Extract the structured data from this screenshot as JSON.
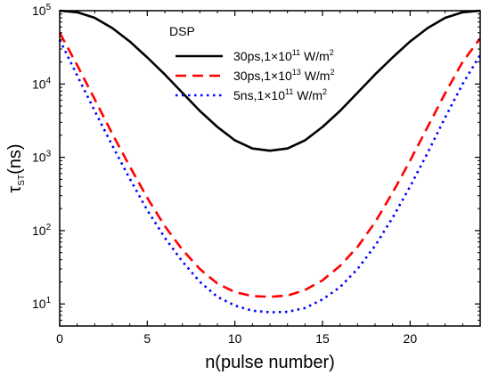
{
  "chart_data": {
    "type": "line",
    "title": "",
    "xlabel": "n(pulse number)",
    "ylabel": {
      "base": "τ",
      "sub": "ST",
      "rest": "(ns)"
    },
    "xlim": [
      0,
      24
    ],
    "ylim": [
      5,
      100000
    ],
    "y_scale": "log",
    "x_ticks": [
      0,
      5,
      10,
      15,
      20
    ],
    "y_ticks": [
      {
        "value": 10,
        "exp": "1"
      },
      {
        "value": 100,
        "exp": "2"
      },
      {
        "value": 1000,
        "exp": "3"
      },
      {
        "value": 10000,
        "exp": "4"
      },
      {
        "value": 100000,
        "exp": "5"
      }
    ],
    "grid": false,
    "legend": {
      "title": "DSP",
      "placement": "top-center",
      "entries": [
        {
          "pre": "30ps,1×10",
          "exp": "11",
          "mid": " W/m",
          "sq": "2"
        },
        {
          "pre": "30ps,1×10",
          "exp": "13",
          "mid": " W/m",
          "sq": "2"
        },
        {
          "pre": "5ns,1×10",
          "exp": "11",
          "mid": " W/m",
          "sq": "2"
        }
      ]
    },
    "x": [
      0,
      1,
      2,
      3,
      4,
      5,
      6,
      7,
      8,
      9,
      10,
      11,
      12,
      13,
      14,
      15,
      16,
      17,
      18,
      19,
      20,
      21,
      22,
      23,
      24
    ],
    "series": [
      {
        "color": "#000000",
        "dash": "solid",
        "values": [
          100000,
          95000,
          80000,
          58000,
          38000,
          23000,
          13500,
          7600,
          4300,
          2600,
          1700,
          1320,
          1230,
          1320,
          1700,
          2600,
          4300,
          7600,
          13500,
          23000,
          38000,
          58000,
          80000,
          95000,
          100000
        ]
      },
      {
        "color": "#ff0000",
        "dash": "dashed",
        "values": [
          50000,
          18000,
          6200,
          2100,
          750,
          280,
          115,
          55,
          30,
          19,
          14.5,
          12.8,
          12.5,
          13,
          15.5,
          21,
          33,
          60,
          130,
          330,
          900,
          2600,
          7500,
          20000,
          42000
        ]
      },
      {
        "color": "#0000ff",
        "dash": "dotted",
        "values": [
          40000,
          13000,
          4300,
          1450,
          510,
          190,
          80,
          38,
          20,
          12.5,
          9.5,
          8.1,
          7.7,
          7.8,
          8.8,
          11.5,
          17,
          30,
          62,
          150,
          400,
          1150,
          3500,
          10000,
          25000
        ]
      }
    ]
  }
}
